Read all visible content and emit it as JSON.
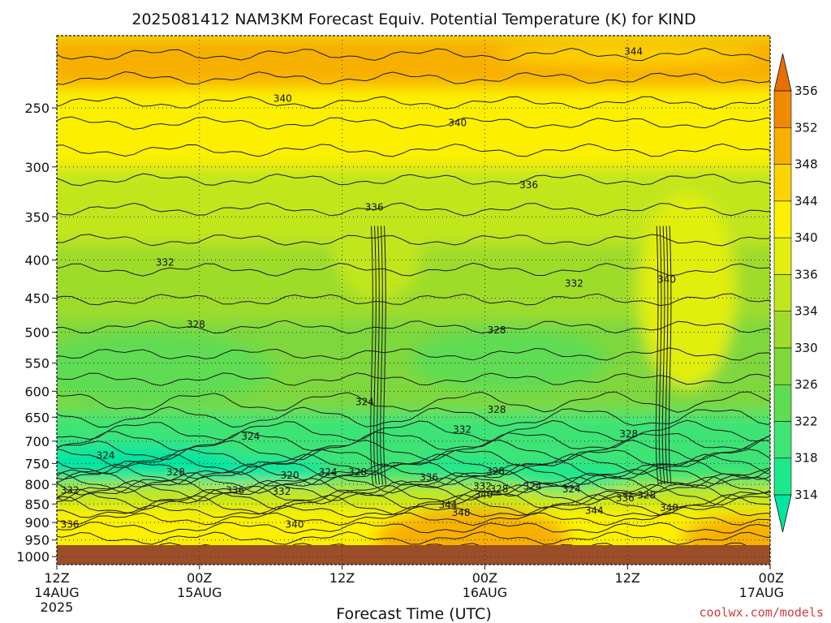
{
  "chart_data": {
    "type": "heatmap",
    "title": "2025081412 NAM3KM Forecast Equiv. Potential Temperature (K) for KIND",
    "xlabel": "Forecast Time (UTC)",
    "ylabel": "",
    "x_ticks": [
      {
        "hour": 0,
        "label": "12Z",
        "sub1": "14AUG",
        "sub2": "2025"
      },
      {
        "hour": 12,
        "label": "00Z",
        "sub1": "15AUG",
        "sub2": ""
      },
      {
        "hour": 24,
        "label": "12Z",
        "sub1": "",
        "sub2": ""
      },
      {
        "hour": 36,
        "label": "00Z",
        "sub1": "16AUG",
        "sub2": ""
      },
      {
        "hour": 48,
        "label": "12Z",
        "sub1": "",
        "sub2": ""
      },
      {
        "hour": 60,
        "label": "00Z",
        "sub1": "17AUG",
        "sub2": ""
      }
    ],
    "xlim": [
      0,
      60
    ],
    "y_ticks": [
      250,
      300,
      350,
      400,
      450,
      500,
      550,
      600,
      650,
      700,
      750,
      800,
      850,
      900,
      950,
      1000
    ],
    "y_tick_labels": [
      "250",
      "300",
      "350",
      "400",
      "450",
      "500",
      "550",
      "600",
      "650",
      "700",
      "750",
      "800",
      "850",
      "900",
      "950",
      "1000"
    ],
    "ylim": [
      200,
      1025
    ],
    "y_scale": "log",
    "y_reversed": true,
    "grid": true,
    "colorbar": {
      "levels": [
        314,
        318,
        322,
        326,
        330,
        334,
        336,
        340,
        344,
        348,
        352,
        356
      ],
      "labels": [
        "314",
        "318",
        "322",
        "326",
        "330",
        "334",
        "336",
        "340",
        "344",
        "348",
        "352",
        "356"
      ],
      "colors": [
        "#00e6a0",
        "#1ee88c",
        "#3ee474",
        "#5edc52",
        "#7ed83c",
        "#9edc2c",
        "#c2e61e",
        "#e2ee10",
        "#fcf000",
        "#fcd400",
        "#f8b000",
        "#f08a00",
        "#e86e00"
      ],
      "extend": "both",
      "placement": "right"
    },
    "contour_labels": [
      {
        "t": 48.5,
        "p": 210,
        "v": "344"
      },
      {
        "t": 19.0,
        "p": 243,
        "v": "340"
      },
      {
        "t": 33.7,
        "p": 262,
        "v": "340"
      },
      {
        "t": 39.7,
        "p": 317,
        "v": "336"
      },
      {
        "t": 26.7,
        "p": 340,
        "v": "336"
      },
      {
        "t": 9.1,
        "p": 403,
        "v": "332"
      },
      {
        "t": 43.5,
        "p": 430,
        "v": "332"
      },
      {
        "t": 51.3,
        "p": 425,
        "v": "340"
      },
      {
        "t": 11.7,
        "p": 488,
        "v": "328"
      },
      {
        "t": 37.0,
        "p": 497,
        "v": "328"
      },
      {
        "t": 25.9,
        "p": 620,
        "v": "324"
      },
      {
        "t": 37.0,
        "p": 635,
        "v": "328"
      },
      {
        "t": 34.1,
        "p": 675,
        "v": "332"
      },
      {
        "t": 16.3,
        "p": 690,
        "v": "324"
      },
      {
        "t": 4.1,
        "p": 732,
        "v": "324"
      },
      {
        "t": 48.1,
        "p": 685,
        "v": "328"
      },
      {
        "t": 10.0,
        "p": 770,
        "v": "328"
      },
      {
        "t": 19.6,
        "p": 778,
        "v": "320"
      },
      {
        "t": 22.8,
        "p": 770,
        "v": "324"
      },
      {
        "t": 25.3,
        "p": 770,
        "v": "328"
      },
      {
        "t": 31.3,
        "p": 783,
        "v": "336"
      },
      {
        "t": 36.9,
        "p": 768,
        "v": "328"
      },
      {
        "t": 35.8,
        "p": 805,
        "v": "332"
      },
      {
        "t": 35.9,
        "p": 825,
        "v": "340"
      },
      {
        "t": 37.2,
        "p": 812,
        "v": "328"
      },
      {
        "t": 40.0,
        "p": 805,
        "v": "324"
      },
      {
        "t": 43.3,
        "p": 812,
        "v": "324"
      },
      {
        "t": 49.6,
        "p": 827,
        "v": "328"
      },
      {
        "t": 1.1,
        "p": 815,
        "v": "332"
      },
      {
        "t": 15.0,
        "p": 815,
        "v": "336"
      },
      {
        "t": 18.9,
        "p": 818,
        "v": "332"
      },
      {
        "t": 32.9,
        "p": 853,
        "v": "344"
      },
      {
        "t": 34.0,
        "p": 873,
        "v": "348"
      },
      {
        "t": 45.2,
        "p": 868,
        "v": "344"
      },
      {
        "t": 47.8,
        "p": 835,
        "v": "336"
      },
      {
        "t": 51.5,
        "p": 860,
        "v": "340"
      },
      {
        "t": 1.1,
        "p": 905,
        "v": "336"
      },
      {
        "t": 20.0,
        "p": 905,
        "v": "340"
      }
    ]
  },
  "credit": "coolwx.com/models"
}
